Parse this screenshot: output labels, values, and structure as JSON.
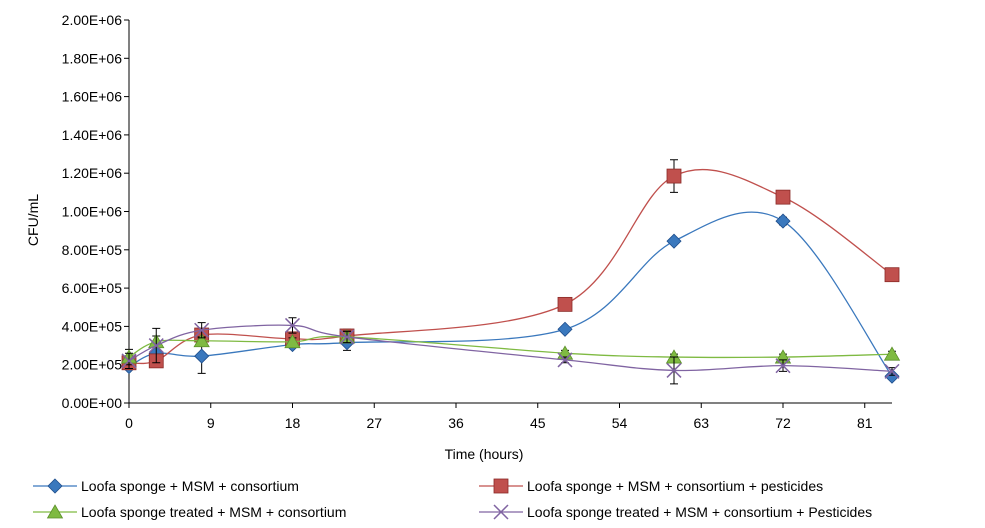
{
  "chart_data": {
    "type": "line",
    "xlabel": "Time (hours)",
    "ylabel": "CFU/mL",
    "xlim": [
      0,
      84
    ],
    "ylim": [
      0,
      2000000
    ],
    "x_ticks": [
      0,
      9,
      18,
      27,
      36,
      45,
      54,
      63,
      72,
      81
    ],
    "x_tick_labels": [
      "0",
      "9",
      "18",
      "27",
      "36",
      "45",
      "54",
      "63",
      "72",
      "81"
    ],
    "y_ticks": [
      0,
      200000,
      400000,
      600000,
      800000,
      1000000,
      1200000,
      1400000,
      1600000,
      1800000,
      2000000
    ],
    "y_tick_labels": [
      "0.00E+00",
      "2.00E+05",
      "4.00E+05",
      "6.00E+05",
      "8.00E+05",
      "1.00E+06",
      "1.20E+06",
      "1.40E+06",
      "1.60E+06",
      "1.80E+06",
      "2.00E+06"
    ],
    "grid": false,
    "legend_position": "bottom",
    "series": [
      {
        "name": "Loofa sponge + MSM + consortium",
        "color": "#3a78bd",
        "marker": "diamond",
        "x": [
          0,
          3,
          8,
          18,
          24,
          48,
          60,
          72,
          84
        ],
        "y": [
          190000,
          260000,
          245000,
          305000,
          315000,
          385000,
          845000,
          950000,
          140000
        ],
        "error": [
          10000,
          20000,
          90000,
          15000,
          40000,
          15000,
          15000,
          20000,
          10000
        ]
      },
      {
        "name": "Loofa sponge + MSM + consortium + pesticides",
        "color": "#c0504d",
        "marker": "square",
        "x": [
          0,
          3,
          8,
          18,
          24,
          48,
          60,
          72,
          84
        ],
        "y": [
          210000,
          220000,
          355000,
          335000,
          350000,
          515000,
          1185000,
          1075000,
          670000
        ],
        "error": [
          20000,
          20000,
          35000,
          30000,
          35000,
          20000,
          85000,
          15000,
          15000
        ]
      },
      {
        "name": "Loofa sponge  treated + MSM + consortium",
        "color": "#7fba42",
        "marker": "triangle",
        "x": [
          0,
          3,
          8,
          18,
          24,
          48,
          60,
          72,
          84
        ],
        "y": [
          240000,
          320000,
          325000,
          320000,
          345000,
          260000,
          240000,
          240000,
          255000
        ],
        "error": [
          40000,
          30000,
          20000,
          20000,
          30000,
          15000,
          15000,
          15000,
          15000
        ]
      },
      {
        "name": "Loofa sponge  treated + MSM + consortium + Pesticides",
        "color": "#8064a2",
        "marker": "x",
        "x": [
          0,
          3,
          8,
          18,
          24,
          48,
          60,
          72,
          84
        ],
        "y": [
          220000,
          300000,
          380000,
          405000,
          345000,
          225000,
          170000,
          195000,
          165000
        ],
        "error": [
          40000,
          90000,
          40000,
          40000,
          30000,
          15000,
          70000,
          30000,
          20000
        ]
      }
    ]
  }
}
